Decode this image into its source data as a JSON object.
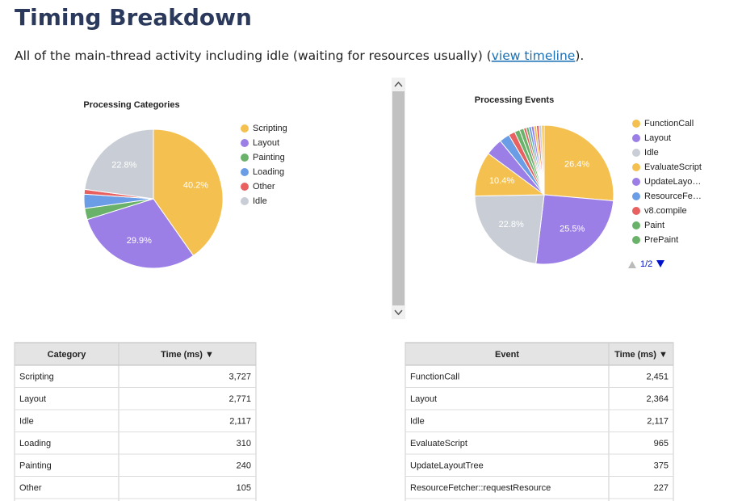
{
  "header": {
    "title": "Timing Breakdown",
    "intro": "All of the main-thread activity including idle (waiting for resources usually) (",
    "link": "view timeline",
    "intro_end": ")."
  },
  "chart_data": [
    {
      "type": "pie",
      "title": "Processing Categories",
      "categories": [
        "Scripting",
        "Layout",
        "Painting",
        "Loading",
        "Other",
        "Idle"
      ],
      "values": [
        40.2,
        29.9,
        2.6,
        3.3,
        1.1,
        22.8
      ],
      "value_labels": [
        "40.2%",
        "29.9%",
        null,
        null,
        null,
        "22.8%"
      ],
      "colors": [
        "#f4c150",
        "#9b7fe6",
        "#6ab26a",
        "#6a9de6",
        "#e86060",
        "#c9ced6"
      ],
      "legend": "right"
    },
    {
      "type": "pie",
      "title": "Processing Events",
      "categories": [
        "FunctionCall",
        "Layout",
        "Idle",
        "EvaluateScript",
        "UpdateLayo…",
        "ResourceFe…",
        "v8.compile",
        "Paint",
        "PrePaint",
        null,
        null,
        null,
        null,
        null,
        null,
        null,
        null
      ],
      "values": [
        26.4,
        25.5,
        22.8,
        10.4,
        4.0,
        2.4,
        1.5,
        1.2,
        1.0,
        0.6,
        0.6,
        0.6,
        0.6,
        0.6,
        0.6,
        0.6,
        0.6
      ],
      "value_labels": [
        "26.4%",
        "25.5%",
        "22.8%",
        "10.4%",
        null,
        null,
        null,
        null,
        null,
        null,
        null,
        null,
        null,
        null,
        null,
        null,
        null
      ],
      "colors": [
        "#f4c150",
        "#9b7fe6",
        "#c9ced6",
        "#f4c150",
        "#9b7fe6",
        "#6a9de6",
        "#e86060",
        "#6ab26a",
        "#6ab26a",
        "#e86060",
        "#6ab26a",
        "#6a9de6",
        "#9b7fe6",
        "#f4c150",
        "#e86060",
        "#c9ced6",
        "#f4c150"
      ],
      "legend": "right",
      "legend_page": "1/2"
    }
  ],
  "tables": [
    {
      "headers": [
        "Category",
        "Time (ms) ▼"
      ],
      "rows": [
        [
          "Scripting",
          "3,727"
        ],
        [
          "Layout",
          "2,771"
        ],
        [
          "Idle",
          "2,117"
        ],
        [
          "Loading",
          "310"
        ],
        [
          "Painting",
          "240"
        ],
        [
          "Other",
          "105"
        ]
      ]
    },
    {
      "headers": [
        "Event",
        "Time (ms) ▼"
      ],
      "rows": [
        [
          "FunctionCall",
          "2,451"
        ],
        [
          "Layout",
          "2,364"
        ],
        [
          "Idle",
          "2,117"
        ],
        [
          "EvaluateScript",
          "965"
        ],
        [
          "UpdateLayoutTree",
          "375"
        ],
        [
          "ResourceFetcher::requestResource",
          "227"
        ]
      ]
    }
  ]
}
